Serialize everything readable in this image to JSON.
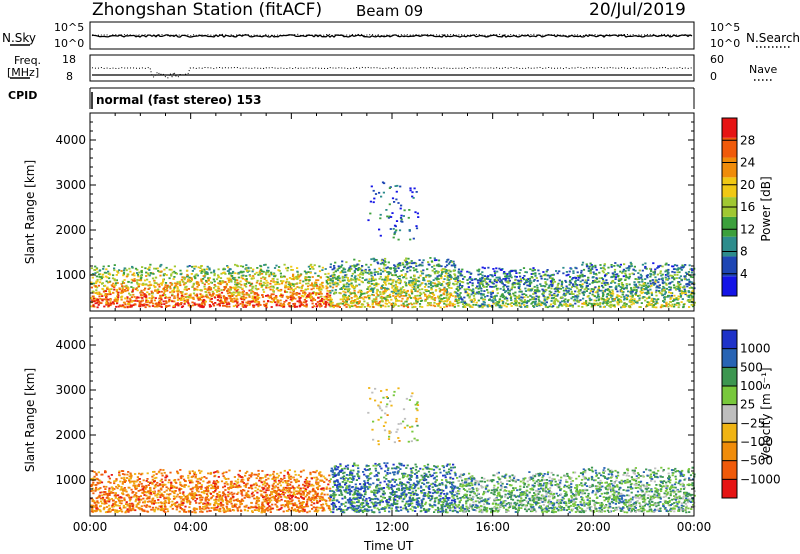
{
  "header": {
    "station": "Zhongshan Station (fitACF)",
    "beam": "Beam 09",
    "date": "20/Jul/2019"
  },
  "strips": {
    "nsky_label": "N.Sky",
    "nsky_ticks": [
      "10^5",
      "10^0"
    ],
    "nsearch_label": "N.Search",
    "nsearch_ticks": [
      "10^5",
      "10^0"
    ],
    "freq_label_1": "Freq.",
    "freq_label_2": "[MHz]",
    "freq_ticks": [
      "18",
      "8"
    ],
    "nave_label": "Nave",
    "nave_ticks": [
      "60",
      "0"
    ],
    "cpid_label": "CPID",
    "cpid_text": "normal (fast stereo) 153"
  },
  "colors": {
    "power": [
      "#1414e6",
      "#1e46b4",
      "#2d8c8c",
      "#3ca03c",
      "#a0c832",
      "#f0c814",
      "#f08c0a",
      "#f05a0a",
      "#e61414"
    ],
    "velocity": [
      "#e61414",
      "#f05a0a",
      "#f08c0a",
      "#f0b414",
      "#bebebe",
      "#78c83c",
      "#3c9650",
      "#2864b4",
      "#1e32c8"
    ]
  },
  "chart_data": [
    {
      "type": "heatmap",
      "title": "",
      "xlabel": "Time UT",
      "ylabel": "Slant Range [km]",
      "xlim": [
        "00:00",
        "24:00"
      ],
      "ylim": [
        200,
        4600
      ],
      "x_ticks": [
        "00:00",
        "04:00",
        "08:00",
        "12:00",
        "16:00",
        "20:00",
        "00:00"
      ],
      "y_ticks": [
        1000,
        2000,
        3000,
        4000
      ],
      "colorbar_label": "Power [dB]",
      "colorbar_ticks": [
        4,
        8,
        12,
        16,
        20,
        24,
        28
      ],
      "colorbar_range": [
        0,
        32
      ],
      "echo_regions": [
        {
          "t_start": 0.0,
          "t_end": 9.5,
          "range_min": 300,
          "range_max": 1250,
          "value": 26
        },
        {
          "t_start": 9.5,
          "t_end": 14.5,
          "range_min": 300,
          "range_max": 1400,
          "value": 18
        },
        {
          "t_start": 14.5,
          "t_end": 19.5,
          "range_min": 300,
          "range_max": 1200,
          "value": 12
        },
        {
          "t_start": 19.5,
          "t_end": 24.0,
          "range_min": 300,
          "range_max": 1300,
          "value": 14
        },
        {
          "t_start": 11.0,
          "t_end": 13.0,
          "range_min": 1800,
          "range_max": 3100,
          "value": 6
        }
      ]
    },
    {
      "type": "heatmap",
      "title": "",
      "xlabel": "Time UT",
      "ylabel": "Slant Range [km]",
      "xlim": [
        "00:00",
        "24:00"
      ],
      "ylim": [
        200,
        4600
      ],
      "x_ticks": [
        "00:00",
        "04:00",
        "08:00",
        "12:00",
        "16:00",
        "20:00",
        "00:00"
      ],
      "y_ticks": [
        1000,
        2000,
        3000,
        4000
      ],
      "colorbar_label": "Velocity [m s⁻¹]",
      "colorbar_ticks": [
        1000,
        500,
        100,
        25,
        -25,
        -100,
        -500,
        -1000
      ],
      "echo_regions": [
        {
          "t_start": 0.0,
          "t_end": 9.5,
          "range_min": 300,
          "range_max": 1250,
          "value": -200
        },
        {
          "t_start": 9.5,
          "t_end": 14.5,
          "range_min": 300,
          "range_max": 1400,
          "value": 150
        },
        {
          "t_start": 14.5,
          "t_end": 19.5,
          "range_min": 300,
          "range_max": 1200,
          "value": 60
        },
        {
          "t_start": 19.5,
          "t_end": 24.0,
          "range_min": 300,
          "range_max": 1300,
          "value": 80
        },
        {
          "t_start": 11.0,
          "t_end": 13.0,
          "range_min": 1800,
          "range_max": 3100,
          "value": 0
        }
      ]
    }
  ]
}
